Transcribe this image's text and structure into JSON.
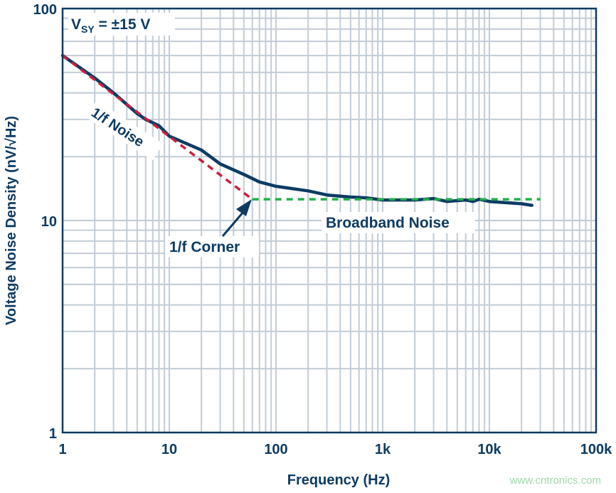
{
  "chart_data": {
    "type": "line",
    "xlabel": "Frequency (Hz)",
    "ylabel": "Voltage Noise Density (nV/√Hz)",
    "x_scale": "log",
    "y_scale": "log",
    "xlim": [
      1,
      100000
    ],
    "ylim": [
      1,
      100
    ],
    "grid": true,
    "x_ticks": [
      {
        "v": 1,
        "label": "1"
      },
      {
        "v": 10,
        "label": "10"
      },
      {
        "v": 100,
        "label": "100"
      },
      {
        "v": 1000,
        "label": "1k"
      },
      {
        "v": 10000,
        "label": "10k"
      },
      {
        "v": 100000,
        "label": "100k"
      }
    ],
    "y_ticks": [
      {
        "v": 1,
        "label": "1"
      },
      {
        "v": 10,
        "label": "10"
      },
      {
        "v": 100,
        "label": "100"
      }
    ],
    "series": [
      {
        "color": "#0d3b63",
        "style": "solid",
        "x": [
          1,
          2,
          3,
          5,
          6,
          8,
          10,
          20,
          30,
          50,
          70,
          100,
          200,
          300,
          500,
          700,
          1000,
          2000,
          3000,
          4000,
          6000,
          7000,
          8000,
          10000,
          20000,
          25000
        ],
        "y": [
          60,
          47,
          40,
          32,
          30,
          28,
          25,
          21.5,
          18.5,
          16.5,
          15.2,
          14.5,
          13.8,
          13.2,
          12.9,
          12.8,
          12.5,
          12.5,
          12.7,
          12.3,
          12.5,
          12.3,
          12.6,
          12.3,
          12.0,
          11.8
        ]
      },
      {
        "color": "#c8203e",
        "style": "dashed",
        "x": [
          1,
          60
        ],
        "y": [
          60,
          12.6
        ]
      },
      {
        "color": "#22b04b",
        "style": "dashed",
        "x": [
          60,
          30000
        ],
        "y": [
          12.6,
          12.6
        ]
      }
    ],
    "annotations": {
      "condition": "V",
      "condition_sub": "SY",
      "condition_rest": " = ±15 V",
      "one_over_f": "1/f Noise",
      "broadband": "Broadband Noise",
      "corner": "1/f Corner"
    },
    "colors": {
      "axis": "#0d3b63",
      "grid": "#c2ccd6"
    }
  },
  "watermark": "www.cntronics.com"
}
